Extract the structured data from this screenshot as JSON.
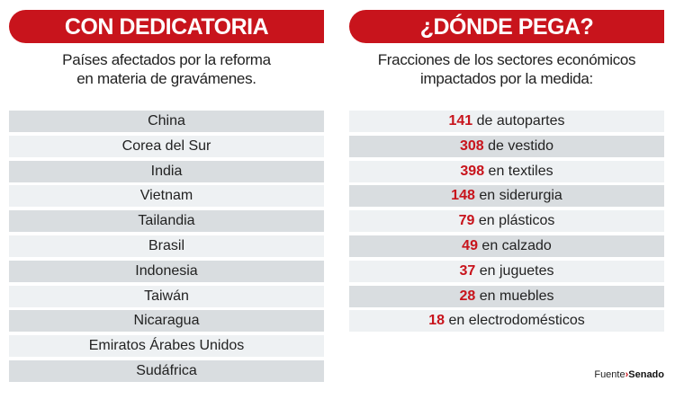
{
  "left": {
    "title": "CON DEDICATORIA",
    "subtitle_lines": [
      "Países afectados por la reforma",
      "en materia de gravámenes."
    ],
    "countries": [
      "China",
      "Corea del Sur",
      "India",
      "Vietnam",
      "Tailandia",
      "Brasil",
      "Indonesia",
      "Taiwán",
      "Nicaragua",
      "Emiratos Árabes Unidos",
      "Sudáfrica"
    ]
  },
  "right": {
    "title": "¿DÓNDE PEGA?",
    "subtitle_lines": [
      "Fracciones de los sectores económicos",
      "impactados por la medida:"
    ],
    "sectors": [
      {
        "n": "141",
        "label": "de autopartes"
      },
      {
        "n": "308",
        "label": "de vestido"
      },
      {
        "n": "398",
        "label": "en textiles"
      },
      {
        "n": "148",
        "label": "en siderurgia"
      },
      {
        "n": "79",
        "label": "en plásticos"
      },
      {
        "n": "49",
        "label": "en calzado"
      },
      {
        "n": "37",
        "label": "en juguetes"
      },
      {
        "n": "28",
        "label": "en muebles"
      },
      {
        "n": "18",
        "label": "en electrodomésticos"
      }
    ]
  },
  "source": {
    "label": "Fuente",
    "value": "Senado"
  },
  "colors": {
    "accent": "#c8141c",
    "row_dark": "#d9dde0",
    "row_light": "#eef1f3"
  }
}
